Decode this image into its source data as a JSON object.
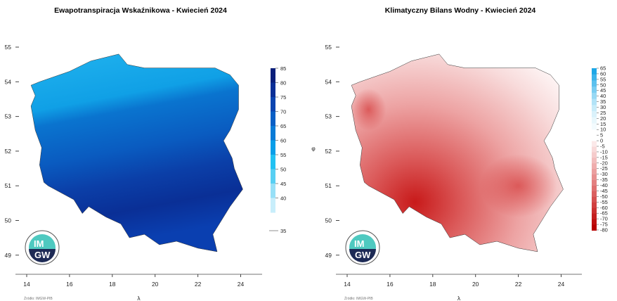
{
  "panels": [
    {
      "title": "Ewapotranspiracja Wskaźnikowa - Kwiecień 2024",
      "x_ticks": [
        "14",
        "16",
        "18",
        "20",
        "22",
        "24"
      ],
      "y_ticks": [
        "55",
        "54",
        "53",
        "52",
        "51",
        "50",
        "49"
      ],
      "x_label": "λ",
      "y_label": "",
      "legend": {
        "labels": [
          "85",
          "80",
          "75",
          "70",
          "65",
          "60",
          "55",
          "50",
          "45",
          "40",
          "35"
        ],
        "colors": [
          "#0a1f7a",
          "#0b2f96",
          "#0c45b0",
          "#0a5fc5",
          "#0a7bd6",
          "#0a9ee8",
          "#22c1f2",
          "#58cff3",
          "#97e0f7",
          "#c8eefb"
        ]
      },
      "footer": "Źródło: IMGW-PIB",
      "logo": "IMGW"
    },
    {
      "title": "Klimatyczny Bilans Wodny - Kwiecień 2024",
      "x_ticks": [
        "14",
        "16",
        "18",
        "20",
        "22",
        "24"
      ],
      "y_ticks": [
        "55",
        "54",
        "53",
        "52",
        "51",
        "50",
        "49"
      ],
      "x_label": "λ",
      "y_label": "φ",
      "legend": {
        "labels": [
          "65",
          "60",
          "55",
          "50",
          "45",
          "40",
          "35",
          "30",
          "25",
          "20",
          "15",
          "10",
          "5",
          "0",
          "-5",
          "-10",
          "-15",
          "-20",
          "-25",
          "-30",
          "-35",
          "-40",
          "-45",
          "-50",
          "-55",
          "-60",
          "-65",
          "-70",
          "-75",
          "-80"
        ],
        "colors_pos": [
          "#1ea7e6",
          "#3db4ea",
          "#5cc1ee",
          "#7bcdf1",
          "#98d9f4",
          "#b2e3f7",
          "#c8ecf9",
          "#daf2fb",
          "#e8f7fc",
          "#f3fbfe",
          "#ffffff"
        ],
        "colors_neg": [
          "#fbe9e9",
          "#f8dada",
          "#f5cccc",
          "#f2bdbd",
          "#efaeae",
          "#eb9f9f",
          "#e79090",
          "#e38080",
          "#df7070",
          "#da6060",
          "#d55050",
          "#d04040",
          "#ca3030",
          "#c42020",
          "#be1010",
          "#b80000"
        ]
      },
      "footer": "Źródło: IMGW-PIB",
      "logo": "IMGW"
    }
  ]
}
